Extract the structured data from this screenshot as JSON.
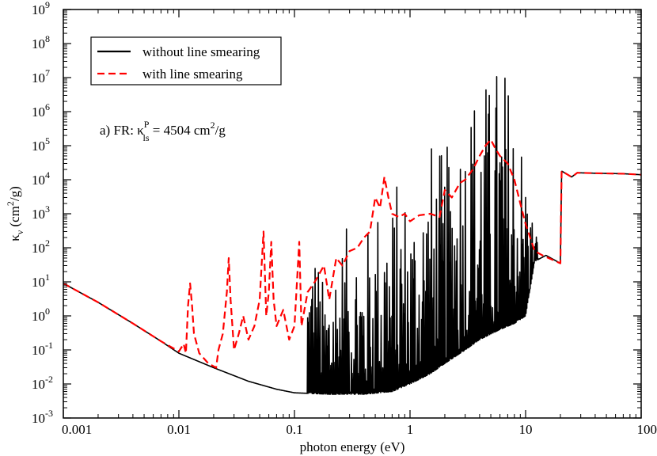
{
  "chart_data": {
    "type": "line",
    "xscale": "log",
    "yscale": "log",
    "xlim": [
      0.001,
      100
    ],
    "ylim": [
      0.001,
      1000000000
    ],
    "x_ticks": [
      "0.001",
      "0.01",
      "0.1",
      "1",
      "10",
      "100"
    ],
    "y_tick_exponents": [
      "-3",
      "-2",
      "-1",
      "0",
      "1",
      "2",
      "3",
      "4",
      "5",
      "6",
      "7",
      "8",
      "9"
    ],
    "y_tick_base": "10",
    "xlabel": "photon energy (eV)",
    "ylabel": {
      "symbol": "κ",
      "sub": "ν",
      "unit_pre": " (cm",
      "unit_sup": "2",
      "unit_post": "/g)"
    },
    "annotation": {
      "pre": "a) FR: κ",
      "sup": "P",
      "sub": "ls",
      "post": " = 4504 cm",
      "sup2": "2",
      "tail": "/g"
    },
    "legend": {
      "position": "top-left"
    },
    "grid": false,
    "series": [
      {
        "name": "without line smearing",
        "color": "#000000",
        "style": "solid",
        "continuum": [
          [
            0.001,
            9
          ],
          [
            0.002,
            2.5
          ],
          [
            0.004,
            0.6
          ],
          [
            0.007,
            0.18
          ],
          [
            0.01,
            0.08
          ],
          [
            0.02,
            0.03
          ],
          [
            0.04,
            0.012
          ],
          [
            0.07,
            0.007
          ],
          [
            0.1,
            0.0055
          ],
          [
            0.2,
            0.005
          ],
          [
            0.4,
            0.005
          ],
          [
            0.7,
            0.006
          ],
          [
            1,
            0.01
          ],
          [
            1.5,
            0.02
          ],
          [
            2,
            0.04
          ],
          [
            3,
            0.1
          ],
          [
            4,
            0.2
          ],
          [
            6,
            0.4
          ],
          [
            8,
            0.6
          ],
          [
            10,
            1
          ],
          [
            12,
            40
          ],
          [
            15,
            60
          ],
          [
            20,
            35
          ],
          [
            20.5,
            18000
          ],
          [
            25,
            12000
          ],
          [
            28,
            16000
          ],
          [
            40,
            15500
          ],
          [
            70,
            15000
          ],
          [
            100,
            14000
          ]
        ],
        "line_region_x": [
          0.13,
          13
        ],
        "line_peaks": [
          [
            0.15,
            300
          ],
          [
            0.18,
            8
          ],
          [
            0.22,
            150
          ],
          [
            0.3,
            500
          ],
          [
            0.35,
            800
          ],
          [
            0.4,
            200
          ],
          [
            0.5,
            2000
          ],
          [
            0.6,
            10000
          ],
          [
            0.7,
            3000
          ],
          [
            0.8,
            20000
          ],
          [
            1,
            5000
          ],
          [
            1.2,
            8000
          ],
          [
            1.5,
            200000
          ],
          [
            2,
            60000
          ],
          [
            2.5,
            1000000
          ],
          [
            3,
            3000000
          ],
          [
            3.5,
            10000000
          ],
          [
            4,
            30000000
          ],
          [
            5,
            8000000
          ],
          [
            6,
            100000000
          ],
          [
            7,
            20000000
          ],
          [
            8,
            5000000
          ],
          [
            9,
            600000
          ],
          [
            10,
            50000
          ],
          [
            12,
            300
          ]
        ]
      },
      {
        "name": "with line smearing",
        "color": "#ff0000",
        "style": "dashed",
        "points": [
          [
            0.001,
            9
          ],
          [
            0.002,
            2.5
          ],
          [
            0.004,
            0.6
          ],
          [
            0.007,
            0.18
          ],
          [
            0.01,
            0.09
          ],
          [
            0.011,
            0.15
          ],
          [
            0.0115,
            0.08
          ],
          [
            0.012,
            2
          ],
          [
            0.0125,
            9
          ],
          [
            0.013,
            2
          ],
          [
            0.0135,
            0.3
          ],
          [
            0.015,
            0.08
          ],
          [
            0.018,
            0.04
          ],
          [
            0.021,
            0.03
          ],
          [
            0.022,
            0.1
          ],
          [
            0.024,
            0.3
          ],
          [
            0.026,
            5
          ],
          [
            0.027,
            50
          ],
          [
            0.028,
            3
          ],
          [
            0.03,
            0.1
          ],
          [
            0.033,
            0.3
          ],
          [
            0.036,
            1
          ],
          [
            0.04,
            0.2
          ],
          [
            0.045,
            0.5
          ],
          [
            0.05,
            3
          ],
          [
            0.054,
            300
          ],
          [
            0.057,
            1
          ],
          [
            0.06,
            5
          ],
          [
            0.063,
            150
          ],
          [
            0.066,
            3
          ],
          [
            0.07,
            0.5
          ],
          [
            0.08,
            1.5
          ],
          [
            0.09,
            0.2
          ],
          [
            0.1,
            0.5
          ],
          [
            0.11,
            150
          ],
          [
            0.115,
            0.5
          ],
          [
            0.13,
            5
          ],
          [
            0.15,
            10
          ],
          [
            0.18,
            30
          ],
          [
            0.2,
            3
          ],
          [
            0.23,
            50
          ],
          [
            0.26,
            30
          ],
          [
            0.3,
            80
          ],
          [
            0.35,
            100
          ],
          [
            0.4,
            200
          ],
          [
            0.45,
            300
          ],
          [
            0.5,
            3000
          ],
          [
            0.55,
            1500
          ],
          [
            0.6,
            12000
          ],
          [
            0.65,
            3000
          ],
          [
            0.7,
            1000
          ],
          [
            0.8,
            800
          ],
          [
            0.9,
            1000
          ],
          [
            1,
            600
          ],
          [
            1.2,
            900
          ],
          [
            1.5,
            1000
          ],
          [
            1.8,
            800
          ],
          [
            2,
            5000
          ],
          [
            2.3,
            3000
          ],
          [
            2.7,
            8000
          ],
          [
            3,
            10000
          ],
          [
            3.5,
            20000
          ],
          [
            4,
            50000
          ],
          [
            4.5,
            100000
          ],
          [
            5,
            150000
          ],
          [
            5.5,
            80000
          ],
          [
            6,
            50000
          ],
          [
            7,
            30000
          ],
          [
            8,
            10000
          ],
          [
            9,
            2000
          ],
          [
            10,
            500
          ],
          [
            12,
            80
          ],
          [
            14,
            60
          ],
          [
            20,
            35
          ],
          [
            20.5,
            18000
          ],
          [
            25,
            12000
          ],
          [
            28,
            16000
          ],
          [
            40,
            15500
          ],
          [
            70,
            15000
          ],
          [
            100,
            14000
          ]
        ]
      }
    ]
  }
}
